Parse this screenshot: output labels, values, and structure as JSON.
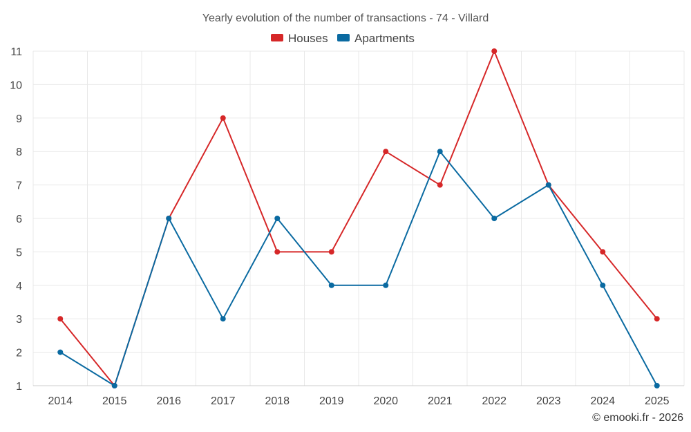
{
  "chart_data": {
    "type": "line",
    "title": "Yearly evolution of the number of transactions - 74 - Villard",
    "categories": [
      "2014",
      "2015",
      "2016",
      "2017",
      "2018",
      "2019",
      "2020",
      "2021",
      "2022",
      "2023",
      "2024",
      "2025"
    ],
    "series": [
      {
        "name": "Houses",
        "color": "#d62728",
        "values": [
          3,
          1,
          6,
          9,
          5,
          5,
          8,
          7,
          11,
          7,
          5,
          3
        ]
      },
      {
        "name": "Apartments",
        "color": "#0a6aa1",
        "values": [
          2,
          1,
          6,
          3,
          6,
          4,
          4,
          8,
          6,
          7,
          4,
          1
        ]
      }
    ],
    "ylim": [
      1,
      11
    ],
    "yticks": [
      1,
      2,
      3,
      4,
      5,
      6,
      7,
      8,
      9,
      10,
      11
    ],
    "grid": true,
    "legend": "top-center"
  },
  "copyright": "© emooki.fr - 2026"
}
